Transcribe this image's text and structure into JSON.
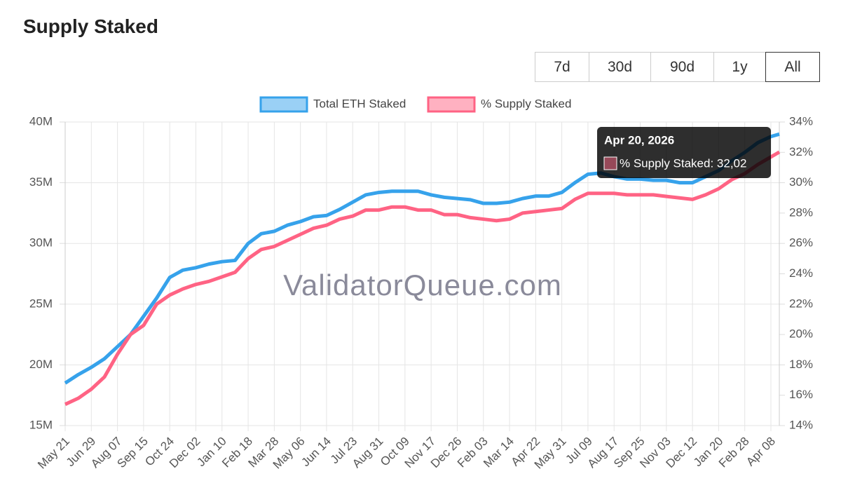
{
  "header": {
    "title": "Supply Staked"
  },
  "range_buttons": [
    "7d",
    "30d",
    "90d",
    "1y",
    "All"
  ],
  "selected_range": 4,
  "chart_data": {
    "type": "line",
    "watermark": "ValidatorQueue.com",
    "legend": "top",
    "grid": true,
    "categories": [
      "May 21",
      null,
      "Jun 29",
      null,
      "Aug 07",
      null,
      "Sep 15",
      null,
      "Oct 24",
      null,
      "Dec 02",
      null,
      "Jan 10",
      null,
      "Feb 18",
      null,
      "Mar 28",
      null,
      "May 06",
      null,
      "Jun 14",
      null,
      "Jul 23",
      null,
      "Aug 31",
      null,
      "Oct 09",
      null,
      "Nov 17",
      null,
      "Dec 26",
      null,
      "Feb 03",
      null,
      "Mar 14",
      null,
      "Apr 22",
      null,
      "May 31",
      null,
      "Jul 09",
      null,
      "Aug 17",
      null,
      "Sep 25",
      null,
      "Nov 03",
      null,
      "Dec 12",
      null,
      "Jan 20",
      null,
      "Feb 28",
      null,
      "Apr 08",
      null
    ],
    "series": [
      {
        "name": "Total ETH Staked",
        "color": "#36a2eb",
        "axis": "y",
        "values": [
          18500000,
          19200000,
          19800000,
          20500000,
          21500000,
          22500000,
          24000000,
          25500000,
          27200000,
          27800000,
          28000000,
          28300000,
          28500000,
          28600000,
          30000000,
          30800000,
          31000000,
          31500000,
          31800000,
          32200000,
          32300000,
          32800000,
          33400000,
          34000000,
          34200000,
          34300000,
          34300000,
          34300000,
          34000000,
          33800000,
          33700000,
          33600000,
          33300000,
          33300000,
          33400000,
          33700000,
          33900000,
          33900000,
          34200000,
          35000000,
          35700000,
          35800000,
          35500000,
          35300000,
          35300000,
          35200000,
          35200000,
          35000000,
          35000000,
          35500000,
          36000000,
          36800000,
          37500000,
          38300000,
          38800000,
          39000000
        ]
      },
      {
        "name": "% Supply Staked",
        "color": "#ff6384",
        "axis": "y2",
        "values": [
          15.4,
          15.8,
          16.4,
          17.2,
          18.7,
          20.0,
          20.6,
          22.0,
          22.6,
          23.0,
          23.3,
          23.5,
          23.8,
          24.1,
          25.0,
          25.6,
          25.8,
          26.2,
          26.6,
          27.0,
          27.2,
          27.6,
          27.8,
          28.2,
          28.2,
          28.4,
          28.4,
          28.2,
          28.2,
          27.9,
          27.9,
          27.7,
          27.6,
          27.5,
          27.6,
          28.0,
          28.1,
          28.2,
          28.3,
          28.9,
          29.3,
          29.3,
          29.3,
          29.2,
          29.2,
          29.2,
          29.1,
          29.0,
          28.9,
          29.2,
          29.6,
          30.2,
          30.6,
          31.2,
          31.7,
          32.02
        ]
      }
    ],
    "ylim": [
      15000000,
      40000000
    ],
    "yticks": [
      {
        "value": 15000000,
        "label": "15M"
      },
      {
        "value": 20000000,
        "label": "20M"
      },
      {
        "value": 25000000,
        "label": "25M"
      },
      {
        "value": 30000000,
        "label": "30M"
      },
      {
        "value": 35000000,
        "label": "35M"
      },
      {
        "value": 40000000,
        "label": "40M"
      }
    ],
    "y2lim": [
      14,
      34
    ],
    "y2ticks": [
      {
        "value": 14,
        "label": "14%"
      },
      {
        "value": 16,
        "label": "16%"
      },
      {
        "value": 18,
        "label": "18%"
      },
      {
        "value": 20,
        "label": "20%"
      },
      {
        "value": 22,
        "label": "22%"
      },
      {
        "value": 24,
        "label": "24%"
      },
      {
        "value": 26,
        "label": "26%"
      },
      {
        "value": 28,
        "label": "28%"
      },
      {
        "value": 30,
        "label": "30%"
      },
      {
        "value": 32,
        "label": "32%"
      },
      {
        "value": 34,
        "label": "34%"
      }
    ],
    "tooltip": {
      "title": "Apr 20, 2026",
      "text": "% Supply Staked: 32,02"
    }
  }
}
